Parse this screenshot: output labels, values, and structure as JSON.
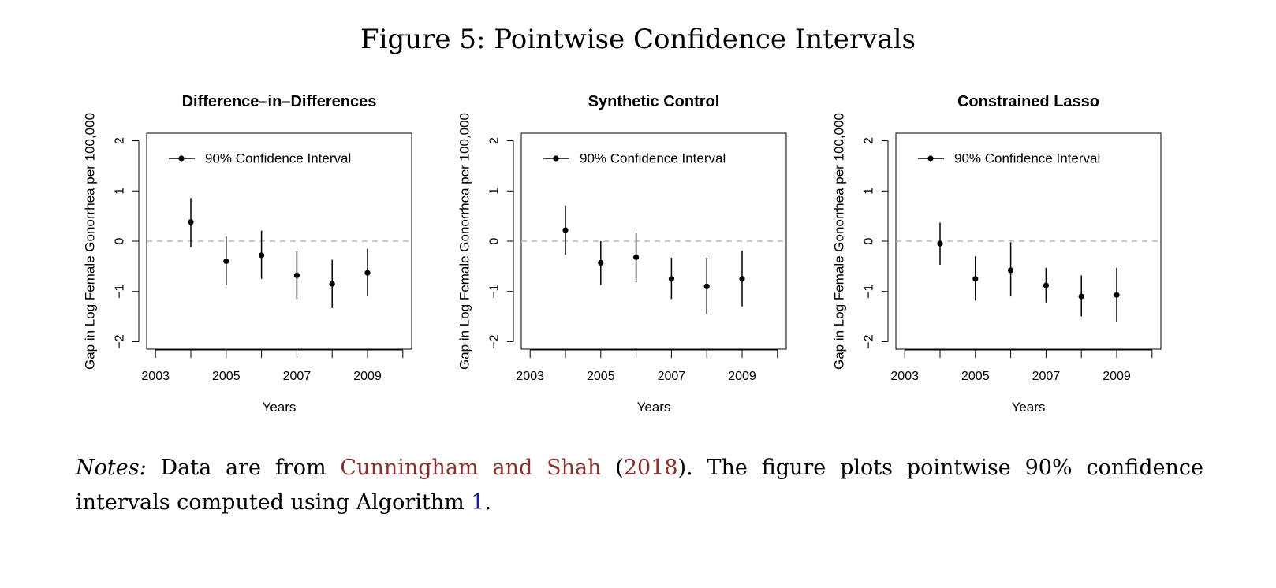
{
  "figure": {
    "title": "Figure 5: Pointwise Confidence Intervals"
  },
  "notes": {
    "label": "Notes:",
    "text1": "Data are from",
    "cite_authors": "Cunningham and Shah",
    "cite_open": "(",
    "cite_year": "2018",
    "text2": "). The figure plots pointwise 90% confidence intervals computed using Algorithm",
    "ref": "1",
    "text3": "."
  },
  "colors": {
    "axis": "#000000",
    "points": "#000000",
    "zero_line": "#bbbbbb",
    "citation": "#8b2f2f",
    "reference": "#1a1aa0"
  },
  "chart_data": [
    {
      "type": "scatter",
      "title": "Difference–in–Differences",
      "xlabel": "Years",
      "ylabel": "Gap in Log Female Gonorrhea per 100,000",
      "xlim": [
        2002.75,
        2010.25
      ],
      "ylim": [
        -2.15,
        2.15
      ],
      "xticks": [
        2003,
        2004,
        2005,
        2006,
        2007,
        2008,
        2009,
        2010
      ],
      "xtick_labels": [
        "2003",
        "",
        "2005",
        "",
        "2007",
        "",
        "2009",
        ""
      ],
      "yticks": [
        -2,
        -1,
        0,
        1,
        2
      ],
      "ytick_labels": [
        "−2",
        "−1",
        "0",
        "1",
        "2"
      ],
      "reference_line": 0,
      "legend": {
        "label": "90% Confidence Interval",
        "position": "top-left"
      },
      "x": [
        2004,
        2005,
        2006,
        2007,
        2008,
        2009
      ],
      "y": [
        0.38,
        -0.4,
        -0.28,
        -0.68,
        -0.85,
        -0.63
      ],
      "lower": [
        -0.12,
        -0.88,
        -0.75,
        -1.15,
        -1.33,
        -1.1
      ],
      "upper": [
        0.86,
        0.09,
        0.21,
        -0.2,
        -0.37,
        -0.15
      ]
    },
    {
      "type": "scatter",
      "title": "Synthetic Control",
      "xlabel": "Years",
      "ylabel": "Gap in Log Female Gonorrhea per 100,000",
      "xlim": [
        2002.75,
        2010.25
      ],
      "ylim": [
        -2.15,
        2.15
      ],
      "xticks": [
        2003,
        2004,
        2005,
        2006,
        2007,
        2008,
        2009,
        2010
      ],
      "xtick_labels": [
        "2003",
        "",
        "2005",
        "",
        "2007",
        "",
        "2009",
        ""
      ],
      "yticks": [
        -2,
        -1,
        0,
        1,
        2
      ],
      "ytick_labels": [
        "−2",
        "−1",
        "0",
        "1",
        "2"
      ],
      "reference_line": 0,
      "legend": {
        "label": "90% Confidence Interval",
        "position": "top-left"
      },
      "x": [
        2004,
        2005,
        2006,
        2007,
        2008,
        2009
      ],
      "y": [
        0.22,
        -0.43,
        -0.32,
        -0.75,
        -0.9,
        -0.75
      ],
      "lower": [
        -0.27,
        -0.87,
        -0.82,
        -1.15,
        -1.45,
        -1.3
      ],
      "upper": [
        0.71,
        0.0,
        0.17,
        -0.33,
        -0.33,
        -0.19
      ]
    },
    {
      "type": "scatter",
      "title": "Constrained Lasso",
      "xlabel": "Years",
      "ylabel": "Gap in Log Female Gonorrhea per 100,000",
      "xlim": [
        2002.75,
        2010.25
      ],
      "ylim": [
        -2.15,
        2.15
      ],
      "xticks": [
        2003,
        2004,
        2005,
        2006,
        2007,
        2008,
        2009,
        2010
      ],
      "xtick_labels": [
        "2003",
        "",
        "2005",
        "",
        "2007",
        "",
        "2009",
        ""
      ],
      "yticks": [
        -2,
        -1,
        0,
        1,
        2
      ],
      "ytick_labels": [
        "−2",
        "−1",
        "0",
        "1",
        "2"
      ],
      "reference_line": 0,
      "legend": {
        "label": "90% Confidence Interval",
        "position": "top-left"
      },
      "x": [
        2004,
        2005,
        2006,
        2007,
        2008,
        2009
      ],
      "y": [
        -0.05,
        -0.75,
        -0.58,
        -0.88,
        -1.1,
        -1.07
      ],
      "lower": [
        -0.47,
        -1.18,
        -1.1,
        -1.22,
        -1.5,
        -1.6
      ],
      "upper": [
        0.37,
        -0.3,
        -0.02,
        -0.53,
        -0.68,
        -0.53
      ]
    }
  ]
}
